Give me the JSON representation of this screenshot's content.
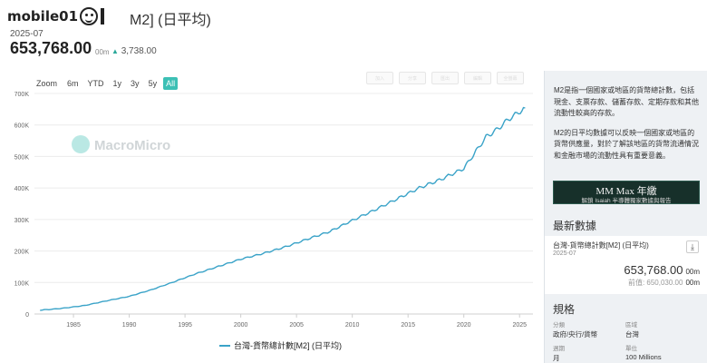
{
  "header": {
    "logo_text": "mobile01",
    "title_tail": "M2] (日平均)",
    "date": "2025-07",
    "value": "653,768.00",
    "unit": "00m",
    "change_symbol": "▲",
    "change": "3,738.00"
  },
  "range": {
    "label": "Zoom",
    "buttons": [
      "6m",
      "YTD",
      "1y",
      "3y",
      "5y",
      "All"
    ],
    "active": "All"
  },
  "tools": [
    "加入",
    "分享",
    "匯出",
    "編輯",
    "全螢幕"
  ],
  "watermark": "MacroMicro",
  "legend": "台灣-貨幣總計數[M2] (日平均)",
  "colors": {
    "line": "#3aa3c8",
    "accent": "#3cc0b5",
    "sidebar_bg": "#eef1f4"
  },
  "chart_data": {
    "type": "line",
    "x_ticks": [
      "1985",
      "1990",
      "1995",
      "2000",
      "2005",
      "2010",
      "2015",
      "2020",
      "2025"
    ],
    "y_ticks": [
      "0",
      "100K",
      "200K",
      "300K",
      "400K",
      "500K",
      "600K",
      "700K"
    ],
    "ylim": [
      0,
      700000
    ],
    "xlim": [
      1981.5,
      2026.2
    ],
    "series": [
      {
        "name": "台灣-貨幣總計數[M2] (日平均)",
        "x": [
          1982,
          1984,
          1986,
          1988,
          1990,
          1992,
          1994,
          1996,
          1998,
          2000,
          2002,
          2004,
          2006,
          2008,
          2010,
          2012,
          2014,
          2016,
          2018,
          2020,
          2021,
          2022,
          2023,
          2024,
          2025.5
        ],
        "y": [
          12000,
          18000,
          27000,
          42000,
          56000,
          77000,
          102000,
          128000,
          151000,
          174000,
          192000,
          213000,
          238000,
          262000,
          297000,
          330000,
          365000,
          400000,
          428000,
          462000,
          512000,
          562000,
          586000,
          618000,
          653768
        ]
      }
    ]
  },
  "sidebar": {
    "desc1": "M2是指一個國家或地區的貨幣總計數，包括現金、支票存款、儲蓄存款、定期存款和其他流動性較高的存款。",
    "desc2": "M2的日平均數據可以反映一個國家或地區的貨幣供應量，對於了解該地區的貨幣流通情況和金融市場的流動性具有重要意義。",
    "banner_title": "MM Max 年繳",
    "banner_sub": "解鎖 Isaiah 半導體獨家數據與報告",
    "latest_heading": "最新數據",
    "latest": {
      "name": "台灣-貨幣總計數[M2] (日平均)",
      "date": "2025-07",
      "value": "653,768.00",
      "unit": "00m",
      "prev_label": "前值: 650,030.00",
      "prev_unit": "00m"
    },
    "spec_heading": "規格",
    "spec": {
      "cat_k": "分類",
      "cat_v": "政府/央行/貨幣",
      "region_k": "區域",
      "region_v": "台灣",
      "period_k": "週期",
      "period_v": "月",
      "unit_k": "單位",
      "unit_v": "100 Millions"
    }
  }
}
